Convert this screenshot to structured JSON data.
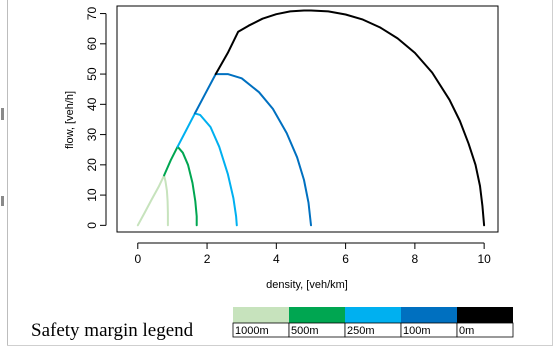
{
  "chart_data": {
    "type": "line",
    "xlabel": "density, [veh/km]",
    "ylabel": "flow, [veh/h]",
    "xlim": [
      -0.6,
      10.4
    ],
    "ylim": [
      -2.2,
      72.5
    ],
    "xticks": [
      0,
      2,
      4,
      6,
      8,
      10
    ],
    "yticks": [
      0,
      10,
      20,
      30,
      40,
      50,
      60,
      70
    ],
    "grid": false,
    "series": [
      {
        "name": "1000m",
        "color": "#c7e3bd",
        "x": [
          0.0,
          0.2,
          0.4,
          0.6,
          0.76,
          0.8,
          0.84,
          0.86,
          0.87,
          0.87
        ],
        "y": [
          0.0,
          4.2,
          8.5,
          12.7,
          16.5,
          14.5,
          11.5,
          8.0,
          4.0,
          0.0
        ]
      },
      {
        "name": "500m",
        "color": "#00a651",
        "x": [
          0.76,
          0.95,
          1.15,
          1.3,
          1.45,
          1.58,
          1.66,
          1.7,
          1.7
        ],
        "y": [
          16.5,
          21.5,
          26.0,
          24.0,
          20.0,
          14.0,
          8.0,
          3.0,
          0.0
        ]
      },
      {
        "name": "250m",
        "color": "#00b0f0",
        "x": [
          1.15,
          1.4,
          1.65,
          1.8,
          2.1,
          2.35,
          2.6,
          2.76,
          2.84,
          2.86
        ],
        "y": [
          26.0,
          31.5,
          37.0,
          36.5,
          32.5,
          26.0,
          17.0,
          9.0,
          3.0,
          0.0
        ]
      },
      {
        "name": "100m",
        "color": "#0070c0",
        "x": [
          1.65,
          1.95,
          2.25,
          2.6,
          3.0,
          3.5,
          3.9,
          4.3,
          4.6,
          4.8,
          4.93,
          5.0
        ],
        "y": [
          37.0,
          43.5,
          50.0,
          50.0,
          48.6,
          44.0,
          38.5,
          30.5,
          22.5,
          15.0,
          7.5,
          0.0
        ]
      },
      {
        "name": "0m",
        "color": "#000000",
        "x": [
          2.25,
          2.6,
          2.9,
          3.2,
          3.6,
          4.0,
          4.4,
          4.8,
          5.0,
          5.5,
          6.0,
          6.5,
          7.0,
          7.5,
          8.0,
          8.5,
          9.0,
          9.3,
          9.55,
          9.75,
          9.88,
          9.95,
          10.0
        ],
        "y": [
          50.0,
          57.0,
          64.0,
          66.0,
          68.3,
          69.8,
          70.7,
          71.0,
          71.0,
          70.7,
          69.7,
          68.0,
          65.4,
          61.8,
          57.0,
          50.5,
          41.5,
          34.5,
          27.0,
          20.0,
          13.0,
          6.5,
          0.0
        ]
      }
    ]
  },
  "legend": {
    "title": "Safety margin legend",
    "items": [
      {
        "label": "1000m",
        "color": "#c7e3bd"
      },
      {
        "label": "500m",
        "color": "#00a651"
      },
      {
        "label": "250m",
        "color": "#00b0f0"
      },
      {
        "label": "100m",
        "color": "#0070c0"
      },
      {
        "label": "0m",
        "color": "#000000"
      }
    ]
  }
}
